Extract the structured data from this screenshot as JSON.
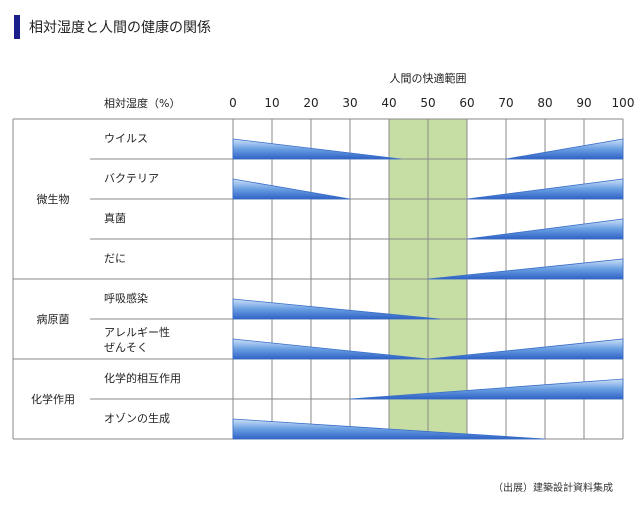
{
  "title": "相対湿度と人間の健康の関係",
  "source": "（出展）建築設計資料集成",
  "chart_data": {
    "type": "range-chart",
    "xlabel": "相対湿度（%）",
    "xlim": [
      0,
      100
    ],
    "xticks": [
      0,
      10,
      20,
      30,
      40,
      50,
      60,
      70,
      80,
      90,
      100
    ],
    "comfort_zone": {
      "label": "人間の快適範囲",
      "range": [
        40,
        60
      ]
    },
    "groups": [
      {
        "name": "微生物",
        "rows": [
          {
            "label": [
              "ウイルス"
            ],
            "wedges": [
              {
                "from": 0,
                "to": 43,
                "peak": "left"
              },
              {
                "from": 70,
                "to": 100,
                "peak": "right"
              }
            ]
          },
          {
            "label": [
              "バクテリア"
            ],
            "wedges": [
              {
                "from": 0,
                "to": 30,
                "peak": "left"
              },
              {
                "from": 60,
                "to": 100,
                "peak": "right"
              }
            ]
          },
          {
            "label": [
              "真菌"
            ],
            "wedges": [
              {
                "from": 60,
                "to": 100,
                "peak": "right"
              }
            ]
          },
          {
            "label": [
              "だに"
            ],
            "wedges": [
              {
                "from": 50,
                "to": 100,
                "peak": "right"
              }
            ]
          }
        ]
      },
      {
        "name": "病原菌",
        "rows": [
          {
            "label": [
              "呼吸感染"
            ],
            "wedges": [
              {
                "from": 0,
                "to": 53,
                "peak": "left"
              }
            ]
          },
          {
            "label": [
              "アレルギー性",
              "ぜんそく"
            ],
            "wedges": [
              {
                "from": 0,
                "to": 50,
                "peak": "left"
              },
              {
                "from": 50,
                "to": 100,
                "peak": "right"
              }
            ]
          }
        ]
      },
      {
        "name": "化学作用",
        "rows": [
          {
            "label": [
              "化学的相互作用"
            ],
            "wedges": [
              {
                "from": 30,
                "to": 100,
                "peak": "right"
              }
            ]
          },
          {
            "label": [
              "オゾンの生成"
            ],
            "wedges": [
              {
                "from": 0,
                "to": 80,
                "peak": "left"
              }
            ]
          }
        ]
      }
    ]
  }
}
